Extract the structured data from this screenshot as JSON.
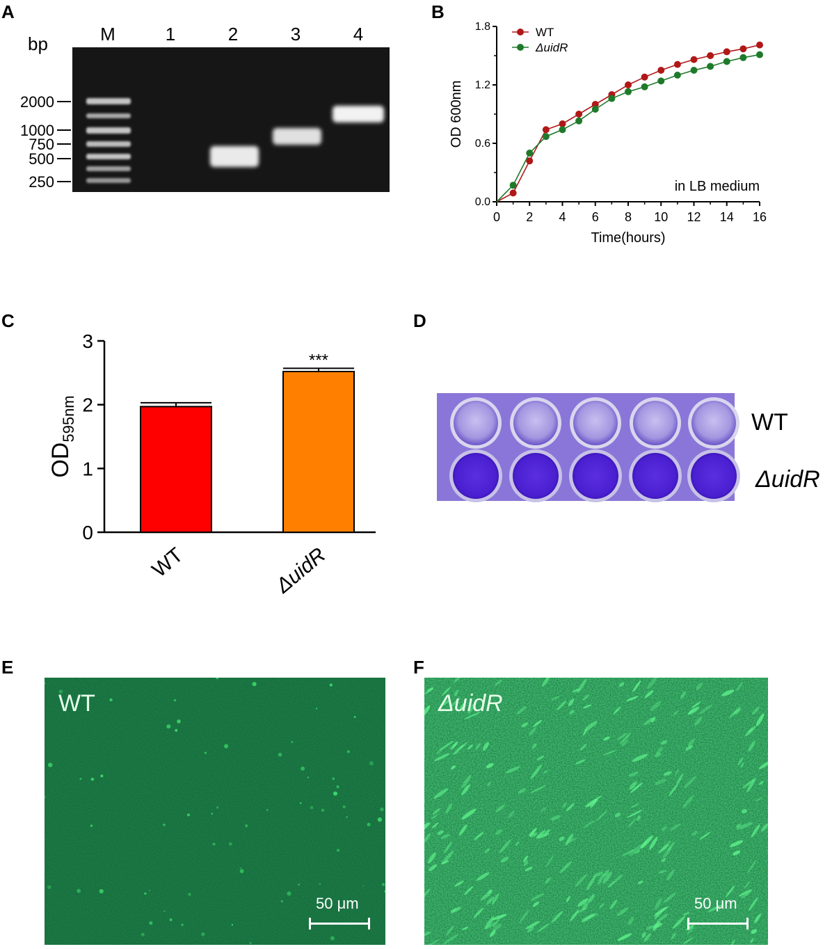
{
  "panels": {
    "A": {
      "letter": "A",
      "unit_label": "bp",
      "lane_labels": [
        "M",
        "1",
        "2",
        "3",
        "4"
      ],
      "marker_sizes": [
        "2000",
        "1000",
        "750",
        "500",
        "250"
      ]
    },
    "B": {
      "letter": "B"
    },
    "C": {
      "letter": "C"
    },
    "D": {
      "letter": "D",
      "row_labels": [
        "WT",
        "ΔuidR"
      ]
    },
    "E": {
      "letter": "E",
      "label": "WT",
      "scale": "50 μm"
    },
    "F": {
      "letter": "F",
      "label": "ΔuidR",
      "scale": "50 μm"
    }
  },
  "chart_data": [
    {
      "id": "B",
      "type": "line",
      "xlabel": "Time(hours)",
      "ylabel": "OD 600nm",
      "xlim": [
        0,
        16
      ],
      "ylim": [
        0,
        1.8
      ],
      "x_ticks": [
        0,
        2,
        4,
        6,
        8,
        10,
        12,
        14,
        16
      ],
      "y_ticks": [
        "0.0",
        "0.6",
        "1.2",
        "1.8"
      ],
      "annotation": "in LB medium",
      "legend_position": "top-left",
      "series": [
        {
          "name": "WT",
          "color": "#b01818",
          "x": [
            0,
            1,
            2,
            3,
            4,
            5,
            6,
            7,
            8,
            9,
            10,
            11,
            12,
            13,
            14,
            15,
            16
          ],
          "y": [
            0,
            0.09,
            0.42,
            0.74,
            0.8,
            0.9,
            1.0,
            1.1,
            1.2,
            1.28,
            1.35,
            1.41,
            1.46,
            1.5,
            1.54,
            1.57,
            1.61
          ]
        },
        {
          "name": "ΔuidR",
          "color": "#1e7a2a",
          "x": [
            0,
            1,
            2,
            3,
            4,
            5,
            6,
            7,
            8,
            9,
            10,
            11,
            12,
            13,
            14,
            15,
            16
          ],
          "y": [
            0,
            0.17,
            0.5,
            0.67,
            0.74,
            0.83,
            0.95,
            1.06,
            1.13,
            1.18,
            1.24,
            1.3,
            1.35,
            1.39,
            1.44,
            1.48,
            1.51
          ]
        }
      ]
    },
    {
      "id": "C",
      "type": "bar",
      "categories": [
        "WT",
        "ΔuidR"
      ],
      "values": [
        1.97,
        2.52
      ],
      "errors": [
        0.06,
        0.05
      ],
      "colors": [
        "#ff0000",
        "#ff8000"
      ],
      "ylabel_main": "OD",
      "ylabel_sub": "595nm",
      "ylim": [
        0,
        3
      ],
      "y_ticks": [
        "0",
        "1",
        "2",
        "3"
      ],
      "significance": [
        "",
        "***"
      ]
    }
  ]
}
